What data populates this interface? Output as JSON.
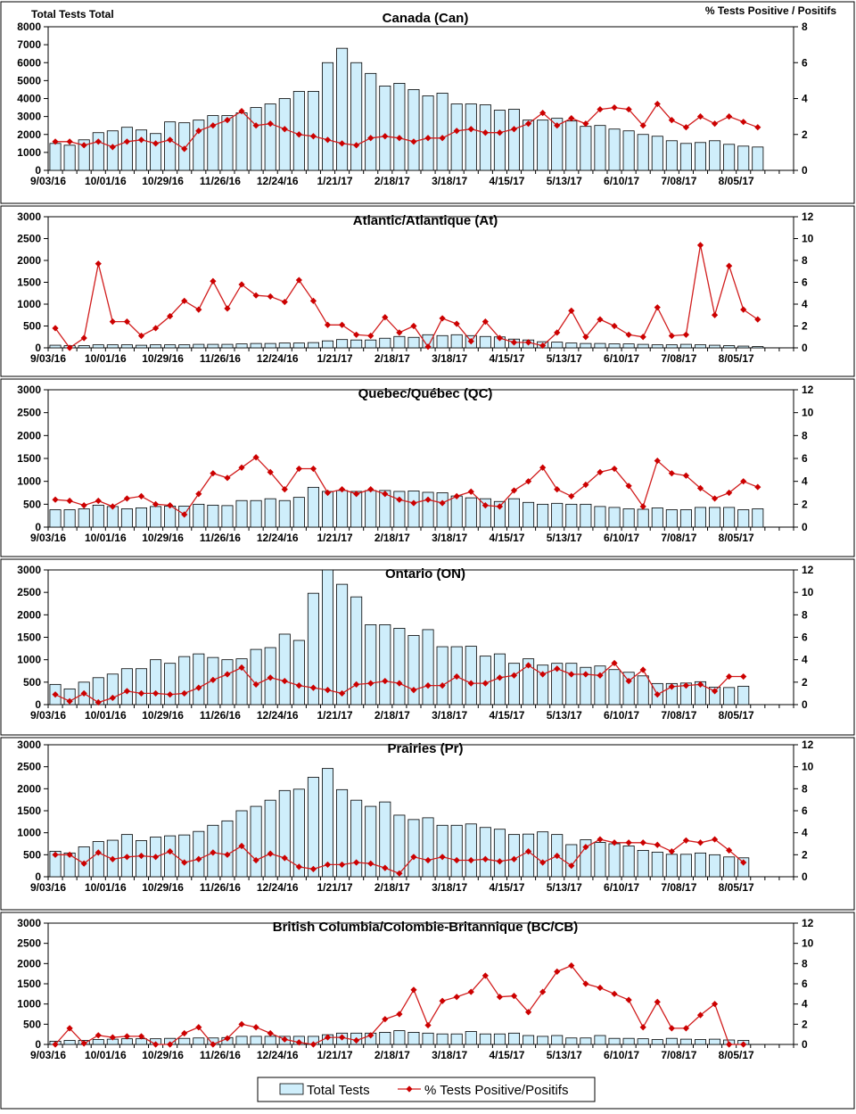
{
  "corner_labels": {
    "left": "Total Tests Total",
    "right": "% Tests Positive / Positifs"
  },
  "legend": {
    "bars": "Total Tests",
    "line": "% Tests Positive/Positifs"
  },
  "colors": {
    "bar_fill": "#cfeefb",
    "bar_stroke": "#000000",
    "line": "#cc0000"
  },
  "chart_data": [
    {
      "type": "bar",
      "title": "Canada (Can)",
      "x_tick_labels": [
        "9/03/16",
        "10/01/16",
        "10/29/16",
        "11/26/16",
        "12/24/16",
        "1/21/17",
        "2/18/17",
        "3/18/17",
        "4/15/17",
        "5/13/17",
        "6/10/17",
        "7/08/17",
        "8/05/17"
      ],
      "y_left": {
        "min": 0,
        "max": 8000,
        "ticks": [
          0,
          1000,
          2000,
          3000,
          4000,
          5000,
          6000,
          7000,
          8000
        ]
      },
      "y_right": {
        "min": 0,
        "max": 8,
        "ticks": [
          0,
          2,
          4,
          6,
          8
        ]
      },
      "n_weeks": 52,
      "series": [
        {
          "name": "Total Tests",
          "axis": "left",
          "type": "bar",
          "values": [
            1500,
            1400,
            1700,
            2100,
            2200,
            2400,
            2250,
            2050,
            2700,
            2650,
            2800,
            3050,
            3050,
            3200,
            3500,
            3700,
            4000,
            4400,
            4400,
            6000,
            6800,
            6000,
            5400,
            4700,
            4850,
            4500,
            4150,
            4300,
            3700,
            3700,
            3650,
            3350,
            3400,
            2800,
            2800,
            2900,
            2750,
            2450,
            2500,
            2300,
            2200,
            2000,
            1900,
            1650,
            1500,
            1550,
            1650,
            1450,
            1350,
            1300,
            0,
            0
          ]
        },
        {
          "name": "% Tests Positive/Positifs",
          "axis": "right",
          "type": "line",
          "values": [
            1.6,
            1.6,
            1.4,
            1.6,
            1.3,
            1.6,
            1.7,
            1.5,
            1.7,
            1.2,
            2.2,
            2.5,
            2.8,
            3.3,
            2.5,
            2.6,
            2.3,
            2.0,
            1.9,
            1.7,
            1.5,
            1.4,
            1.8,
            1.9,
            1.8,
            1.6,
            1.8,
            1.8,
            2.2,
            2.3,
            2.1,
            2.1,
            2.3,
            2.6,
            3.2,
            2.5,
            2.9,
            2.6,
            3.4,
            3.5,
            3.4,
            2.5,
            3.7,
            2.8,
            2.4,
            3.0,
            2.6,
            3.0,
            2.7,
            2.4,
            null,
            null
          ]
        }
      ]
    },
    {
      "type": "bar",
      "title": "Atlantic/Atlantique  (At)",
      "x_tick_labels": [
        "9/03/16",
        "10/01/16",
        "10/29/16",
        "11/26/16",
        "12/24/16",
        "1/21/17",
        "2/18/17",
        "3/18/17",
        "4/15/17",
        "5/13/17",
        "6/10/17",
        "7/08/17",
        "8/05/17"
      ],
      "y_left": {
        "min": 0,
        "max": 3000,
        "ticks": [
          0,
          500,
          1000,
          1500,
          2000,
          2500,
          3000
        ]
      },
      "y_right": {
        "min": 0,
        "max": 12,
        "ticks": [
          0,
          2,
          4,
          6,
          8,
          10,
          12
        ]
      },
      "n_weeks": 52,
      "series": [
        {
          "name": "Total Tests",
          "axis": "left",
          "type": "bar",
          "values": [
            60,
            50,
            50,
            70,
            70,
            70,
            60,
            70,
            70,
            70,
            80,
            80,
            80,
            90,
            100,
            100,
            110,
            110,
            120,
            160,
            190,
            180,
            180,
            220,
            260,
            240,
            300,
            280,
            300,
            280,
            260,
            250,
            200,
            180,
            140,
            130,
            110,
            100,
            100,
            90,
            90,
            80,
            70,
            70,
            80,
            70,
            60,
            50,
            40,
            30,
            0,
            0
          ]
        },
        {
          "name": "% Tests Positive/Positifs",
          "axis": "right",
          "type": "line",
          "values": [
            1.8,
            0.0,
            0.9,
            7.7,
            2.4,
            2.4,
            1.1,
            1.8,
            2.9,
            4.3,
            3.5,
            6.1,
            3.6,
            5.8,
            4.8,
            4.7,
            4.2,
            6.2,
            4.3,
            2.1,
            2.1,
            1.2,
            1.1,
            2.8,
            1.4,
            2.0,
            0.1,
            2.7,
            2.2,
            0.6,
            2.4,
            0.9,
            0.5,
            0.5,
            0.2,
            1.4,
            3.4,
            1.0,
            2.6,
            2.0,
            1.2,
            1.0,
            3.7,
            1.1,
            1.2,
            9.4,
            3.0,
            7.5,
            3.5,
            2.6,
            null,
            null
          ]
        }
      ]
    },
    {
      "type": "bar",
      "title": "Quebec/Québec (QC)",
      "x_tick_labels": [
        "9/03/16",
        "10/01/16",
        "10/29/16",
        "11/26/16",
        "12/24/16",
        "1/21/17",
        "2/18/17",
        "3/18/17",
        "4/15/17",
        "5/13/17",
        "6/10/17",
        "7/08/17",
        "8/05/17"
      ],
      "y_left": {
        "min": 0,
        "max": 3000,
        "ticks": [
          0,
          500,
          1000,
          1500,
          2000,
          2500,
          3000
        ]
      },
      "y_right": {
        "min": 0,
        "max": 12,
        "ticks": [
          0,
          2,
          4,
          6,
          8,
          10,
          12
        ]
      },
      "n_weeks": 52,
      "series": [
        {
          "name": "Total Tests",
          "axis": "left",
          "type": "bar",
          "values": [
            380,
            380,
            400,
            480,
            450,
            400,
            420,
            450,
            460,
            460,
            500,
            480,
            470,
            580,
            580,
            620,
            580,
            650,
            870,
            780,
            800,
            780,
            800,
            800,
            780,
            790,
            760,
            750,
            680,
            640,
            620,
            560,
            620,
            540,
            500,
            520,
            500,
            500,
            450,
            430,
            400,
            390,
            420,
            380,
            380,
            430,
            430,
            430,
            380,
            400,
            0,
            0
          ]
        },
        {
          "name": "% Tests Positive/Positifs",
          "axis": "right",
          "type": "line",
          "values": [
            2.4,
            2.3,
            1.9,
            2.3,
            1.8,
            2.5,
            2.7,
            2.0,
            1.9,
            1.1,
            2.9,
            4.7,
            4.3,
            5.2,
            6.1,
            4.8,
            3.3,
            5.1,
            5.1,
            3.0,
            3.3,
            2.9,
            3.3,
            2.9,
            2.4,
            2.1,
            2.4,
            2.1,
            2.7,
            3.1,
            1.9,
            1.8,
            3.2,
            4.0,
            5.2,
            3.3,
            2.7,
            3.7,
            4.8,
            5.1,
            3.6,
            1.8,
            5.8,
            4.7,
            4.5,
            3.4,
            2.5,
            3.0,
            4.0,
            3.5,
            null,
            null
          ]
        }
      ]
    },
    {
      "type": "bar",
      "title": "Ontario (ON)",
      "x_tick_labels": [
        "9/03/16",
        "10/01/16",
        "10/29/16",
        "11/26/16",
        "12/24/16",
        "1/21/17",
        "2/18/17",
        "3/18/17",
        "4/15/17",
        "5/13/17",
        "6/10/17",
        "7/08/17",
        "8/05/17"
      ],
      "y_left": {
        "min": 0,
        "max": 3000,
        "ticks": [
          0,
          500,
          1000,
          1500,
          2000,
          2500,
          3000
        ]
      },
      "y_right": {
        "min": 0,
        "max": 12,
        "ticks": [
          0,
          2,
          4,
          6,
          8,
          10,
          12
        ]
      },
      "n_weeks": 52,
      "series": [
        {
          "name": "Total Tests",
          "axis": "left",
          "type": "bar",
          "values": [
            450,
            350,
            500,
            600,
            680,
            800,
            800,
            1000,
            920,
            1070,
            1130,
            1050,
            1000,
            1020,
            1230,
            1270,
            1570,
            1430,
            2480,
            3000,
            2680,
            2400,
            1780,
            1780,
            1700,
            1540,
            1670,
            1290,
            1290,
            1300,
            1080,
            1130,
            920,
            1020,
            880,
            920,
            920,
            830,
            860,
            780,
            720,
            640,
            470,
            470,
            480,
            510,
            390,
            380,
            410,
            0,
            0,
            0
          ]
        },
        {
          "name": "% Tests Positive/Positifs",
          "axis": "right",
          "type": "line",
          "values": [
            0.9,
            0.3,
            1.0,
            0.2,
            0.6,
            1.2,
            1.0,
            1.0,
            0.9,
            1.0,
            1.5,
            2.2,
            2.7,
            3.3,
            1.8,
            2.4,
            2.1,
            1.7,
            1.5,
            1.3,
            1.0,
            1.8,
            1.9,
            2.1,
            1.9,
            1.3,
            1.7,
            1.7,
            2.5,
            1.9,
            1.9,
            2.4,
            2.6,
            3.5,
            2.7,
            3.2,
            2.7,
            2.7,
            2.6,
            3.7,
            2.1,
            3.1,
            0.9,
            1.6,
            1.7,
            1.8,
            1.2,
            2.5,
            2.5,
            null,
            null,
            null
          ]
        }
      ]
    },
    {
      "type": "bar",
      "title": "Prairies (Pr)",
      "x_tick_labels": [
        "9/03/16",
        "10/01/16",
        "10/29/16",
        "11/26/16",
        "12/24/16",
        "1/21/17",
        "2/18/17",
        "3/18/17",
        "4/15/17",
        "5/13/17",
        "6/10/17",
        "7/08/17",
        "8/05/17"
      ],
      "y_left": {
        "min": 0,
        "max": 3000,
        "ticks": [
          0,
          500,
          1000,
          1500,
          2000,
          2500,
          3000
        ]
      },
      "y_right": {
        "min": 0,
        "max": 12,
        "ticks": [
          0,
          2,
          4,
          6,
          8,
          10,
          12
        ]
      },
      "n_weeks": 52,
      "series": [
        {
          "name": "Total Tests",
          "axis": "left",
          "type": "bar",
          "values": [
            580,
            540,
            680,
            800,
            830,
            960,
            820,
            900,
            930,
            950,
            1030,
            1170,
            1270,
            1500,
            1600,
            1740,
            1960,
            1990,
            2260,
            2460,
            1980,
            1740,
            1600,
            1700,
            1400,
            1300,
            1340,
            1170,
            1170,
            1200,
            1120,
            1080,
            960,
            970,
            1020,
            960,
            730,
            840,
            780,
            750,
            700,
            600,
            560,
            510,
            510,
            540,
            500,
            450,
            430,
            0,
            0,
            0
          ]
        },
        {
          "name": "% Tests Positive/Positifs",
          "axis": "right",
          "type": "line",
          "values": [
            2.0,
            2.0,
            1.2,
            2.2,
            1.6,
            1.8,
            1.9,
            1.8,
            2.3,
            1.3,
            1.6,
            2.2,
            2.0,
            2.8,
            1.5,
            2.1,
            1.7,
            0.9,
            0.7,
            1.1,
            1.1,
            1.3,
            1.2,
            0.8,
            0.3,
            1.8,
            1.5,
            1.8,
            1.5,
            1.5,
            1.6,
            1.4,
            1.6,
            2.3,
            1.3,
            1.9,
            1.0,
            2.7,
            3.4,
            3.1,
            3.1,
            3.1,
            2.9,
            2.3,
            3.3,
            3.1,
            3.4,
            2.4,
            1.3,
            null,
            null,
            null
          ]
        }
      ]
    },
    {
      "type": "bar",
      "title": "British Columbia/Colombie-Britannique (BC/CB)",
      "x_tick_labels": [
        "9/03/16",
        "10/01/16",
        "10/29/16",
        "11/26/16",
        "12/24/16",
        "1/21/17",
        "2/18/17",
        "3/18/17",
        "4/15/17",
        "5/13/17",
        "6/10/17",
        "7/08/17",
        "8/05/17"
      ],
      "y_left": {
        "min": 0,
        "max": 3000,
        "ticks": [
          0,
          500,
          1000,
          1500,
          2000,
          2500,
          3000
        ]
      },
      "y_right": {
        "min": 0,
        "max": 12,
        "ticks": [
          0,
          2,
          4,
          6,
          8,
          10,
          12
        ]
      },
      "n_weeks": 52,
      "series": [
        {
          "name": "Total Tests",
          "axis": "left",
          "type": "bar",
          "values": [
            80,
            100,
            100,
            120,
            130,
            140,
            140,
            140,
            150,
            150,
            160,
            160,
            170,
            200,
            200,
            200,
            200,
            200,
            200,
            240,
            280,
            280,
            280,
            300,
            340,
            300,
            280,
            260,
            260,
            320,
            260,
            260,
            280,
            220,
            200,
            220,
            160,
            160,
            220,
            150,
            150,
            140,
            120,
            150,
            130,
            120,
            130,
            110,
            100,
            0,
            0,
            0
          ]
        },
        {
          "name": "% Tests Positive/Positifs",
          "axis": "right",
          "type": "line",
          "values": [
            0.0,
            1.6,
            0.1,
            0.9,
            0.7,
            0.8,
            0.8,
            0.0,
            0.0,
            1.1,
            1.7,
            0.0,
            0.6,
            2.0,
            1.7,
            1.1,
            0.5,
            0.2,
            0.0,
            0.7,
            0.7,
            0.4,
            0.9,
            2.5,
            3.0,
            5.4,
            1.9,
            4.3,
            4.7,
            5.2,
            6.8,
            4.7,
            4.8,
            3.2,
            5.2,
            7.2,
            7.8,
            6.0,
            5.6,
            5.0,
            4.4,
            1.7,
            4.2,
            1.6,
            1.6,
            2.9,
            4.0,
            0.0,
            0.0,
            null,
            null,
            null
          ]
        }
      ]
    }
  ]
}
